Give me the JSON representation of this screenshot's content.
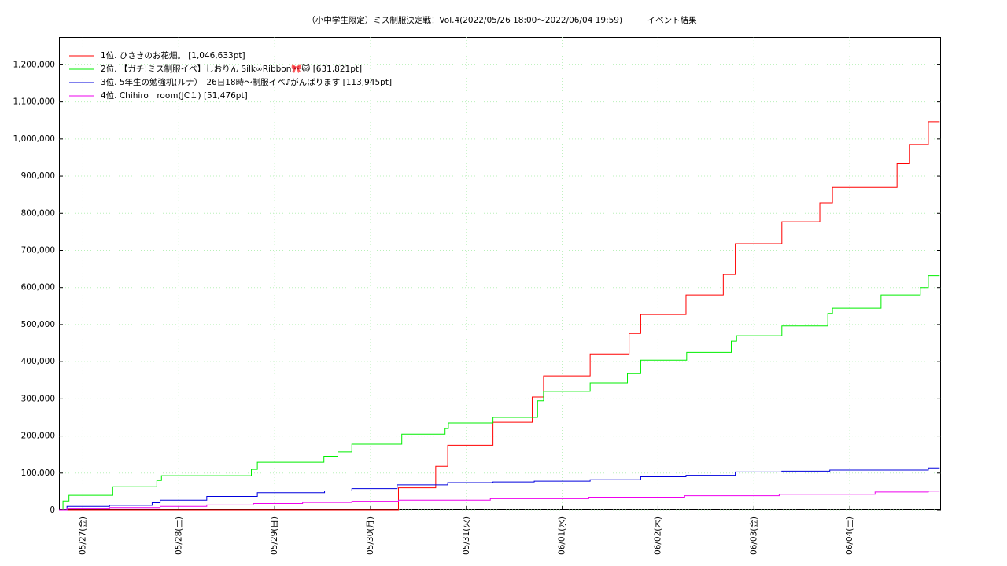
{
  "chart_data": {
    "type": "line",
    "step": true,
    "grid": true,
    "legend": "upper left",
    "title": "（小中学生限定）ミス制服決定戦！Vol.4(2022/05/26 18:00～2022/06/04 19:59)　　　イベント結果",
    "xlim": [
      "05/26 18:00",
      "06/04 22:50"
    ],
    "xticks": [
      {
        "value": "05/27 00:00",
        "label": "05/27(金)"
      },
      {
        "value": "05/28 00:00",
        "label": "05/28(土)"
      },
      {
        "value": "05/29 00:00",
        "label": "05/29(日)"
      },
      {
        "value": "05/30 00:00",
        "label": "05/30(月)"
      },
      {
        "value": "05/31 00:00",
        "label": "05/31(火)"
      },
      {
        "value": "06/01 00:00",
        "label": "06/01(水)"
      },
      {
        "value": "06/02 00:00",
        "label": "06/02(木)"
      },
      {
        "value": "06/03 00:00",
        "label": "06/03(金)"
      },
      {
        "value": "06/04 00:00",
        "label": "06/04(土)"
      }
    ],
    "ylim": [
      0,
      1275000
    ],
    "yticks": [
      0,
      {
        "value": 100000,
        "label": "100,000"
      },
      {
        "value": 200000,
        "label": "200,000"
      },
      {
        "value": 300000,
        "label": "300,000"
      },
      {
        "value": 400000,
        "label": "400,000"
      },
      {
        "value": 500000,
        "label": "500,000"
      },
      {
        "value": 600000,
        "label": "600,000"
      },
      {
        "value": 700000,
        "label": "700,000"
      },
      {
        "value": 800000,
        "label": "800,000"
      },
      {
        "value": 900000,
        "label": "900,000"
      },
      {
        "value": 1000000,
        "label": "1,000,000"
      },
      {
        "value": 1100000,
        "label": "1,100,000"
      },
      {
        "value": 1200000,
        "label": "1,200,000"
      }
    ],
    "series": [
      {
        "name": "1位. ひさきのお花畑。 [1,046,633pt]",
        "color": "#ff0000",
        "x": [
          "05/26 18:00",
          "05/30 07:00",
          "05/30 16:20",
          "05/30 19:20",
          "05/31 06:40",
          "05/31 16:30",
          "05/31 19:20",
          "06/01 07:00",
          "06/01 16:45",
          "06/01 19:40",
          "06/02 07:00",
          "06/02 16:20",
          "06/02 19:20",
          "06/03 07:00",
          "06/03 16:30",
          "06/03 19:40",
          "06/04 11:50",
          "06/04 15:00",
          "06/04 19:40",
          "06/04 22:30"
        ],
        "values": [
          0,
          60000,
          118000,
          175000,
          237000,
          305000,
          362000,
          421000,
          476000,
          527000,
          580000,
          635000,
          718000,
          777000,
          828000,
          870000,
          935000,
          985000,
          1046633,
          1046633
        ]
      },
      {
        "name": "2位. 【ガチ!ミス制服イベ】しおりん Silk∞Ribbon🎀🐱 [631,821pt]",
        "color": "#00ee00",
        "x": [
          "05/26 18:00",
          "05/26 19:00",
          "05/26 20:30",
          "05/27 07:20",
          "05/27 18:30",
          "05/27 19:40",
          "05/28 18:10",
          "05/28 19:40",
          "05/29 12:20",
          "05/29 15:50",
          "05/29 19:20",
          "05/30 07:50",
          "05/30 18:40",
          "05/30 19:30",
          "05/31 06:40",
          "05/31 17:50",
          "05/31 19:20",
          "06/01 07:00",
          "06/01 16:20",
          "06/01 19:40",
          "06/02 07:10",
          "06/02 18:20",
          "06/02 19:40",
          "06/03 07:00",
          "06/03 18:30",
          "06/03 19:40",
          "06/04 07:50",
          "06/04 17:40",
          "06/04 19:40",
          "06/04 22:30"
        ],
        "values": [
          0,
          25000,
          40000,
          63000,
          80000,
          93000,
          110000,
          129000,
          145000,
          157000,
          178000,
          205000,
          220000,
          235000,
          250000,
          295000,
          320000,
          343000,
          368000,
          404000,
          425000,
          455000,
          470000,
          496000,
          530000,
          544000,
          580000,
          600000,
          631821,
          631821
        ]
      },
      {
        "name": "3位. 5年生の勉強机(ルナ）　26日18時〜制服イベ♪がんばります [113,945pt]",
        "color": "#0000dd",
        "x": [
          "05/26 18:00",
          "05/26 20:00",
          "05/27 06:40",
          "05/27 17:20",
          "05/27 19:20",
          "05/28 07:00",
          "05/28 19:40",
          "05/29 12:30",
          "05/29 19:20",
          "05/30 06:40",
          "05/30 19:20",
          "05/31 06:40",
          "05/31 17:00",
          "06/01 07:00",
          "06/01 19:40",
          "06/02 07:00",
          "06/02 19:20",
          "06/03 07:00",
          "06/03 19:00",
          "06/04 19:40",
          "06/04 22:30"
        ],
        "values": [
          0,
          10000,
          13000,
          20000,
          27000,
          37000,
          47000,
          52000,
          58000,
          68000,
          74000,
          76000,
          78000,
          82000,
          90000,
          94000,
          103000,
          105000,
          108000,
          113945,
          113945
        ]
      },
      {
        "name": "4位. Chihiro　room(JC１) [51,476pt]",
        "color": "#ee00ee",
        "x": [
          "05/26 18:00",
          "05/26 20:00",
          "05/27 06:40",
          "05/27 19:20",
          "05/28 07:00",
          "05/28 18:40",
          "05/29 07:00",
          "05/29 19:20",
          "05/30 07:00",
          "05/31 06:00",
          "06/01 06:40",
          "06/02 06:40",
          "06/03 06:20",
          "06/04 06:20",
          "06/04 19:40",
          "06/04 22:30"
        ],
        "values": [
          0,
          5000,
          7000,
          10000,
          14000,
          18000,
          21000,
          24000,
          27000,
          31000,
          35000,
          39000,
          43000,
          49000,
          51476,
          51476
        ]
      }
    ]
  }
}
